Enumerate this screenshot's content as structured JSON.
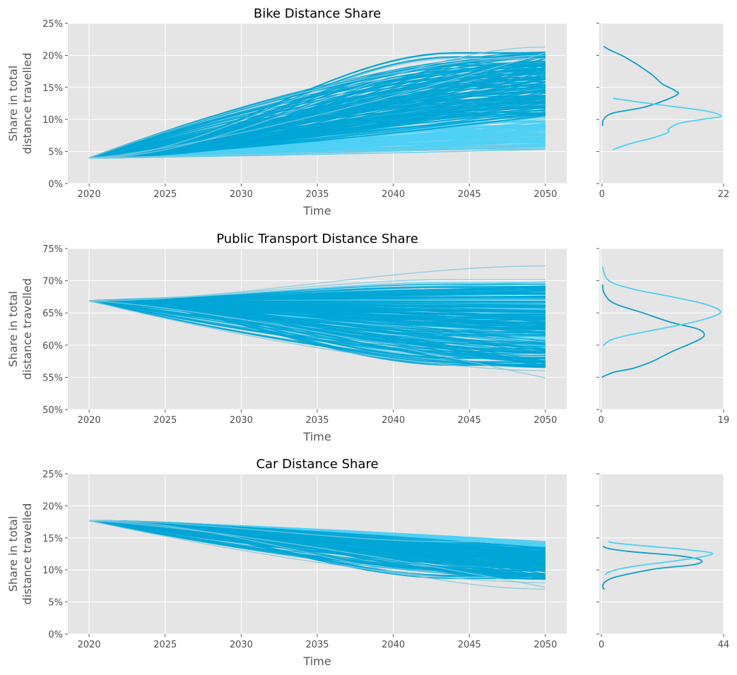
{
  "chart_data": [
    {
      "type": "line",
      "title": "Bike Distance Share",
      "xlabel": "Time",
      "ylabel_line1": "Share in total",
      "ylabel_line2": "distance travelled",
      "x_ticks": [
        2020,
        2025,
        2030,
        2035,
        2040,
        2045,
        2050
      ],
      "xlim": [
        2018.6,
        2051.4
      ],
      "ylim": [
        0,
        25
      ],
      "y_ticks": [
        0,
        5,
        10,
        15,
        20,
        25
      ],
      "y_tick_labels": [
        "0%",
        "5%",
        "10%",
        "15%",
        "20%",
        "25%"
      ],
      "start_value": 4.0,
      "start_year": 2020,
      "end_year": 2050,
      "envelope_end": {
        "light_low": 5.3,
        "light_high": 10.8,
        "dark_low": 10.5,
        "dark_high": 20.6
      },
      "outlier_end_values": [
        21.3,
        20.4,
        20.0,
        19.5,
        5.6,
        5.9
      ],
      "grid": true,
      "density": {
        "x_ticks": [
          0,
          22
        ],
        "xlim": [
          -0.5,
          22
        ],
        "series": [
          {
            "color": "#0a9fcc",
            "points": [
              [
                0.1,
                9.0
              ],
              [
                0.3,
                10.0
              ],
              [
                2.0,
                11.0
              ],
              [
                8.0,
                12.0
              ],
              [
                13.5,
                13.8
              ],
              [
                13.0,
                14.6
              ],
              [
                11.0,
                15.5
              ],
              [
                9.0,
                17.0
              ],
              [
                6.5,
                18.5
              ],
              [
                4.0,
                19.8
              ],
              [
                1.5,
                20.8
              ],
              [
                0.3,
                21.4
              ]
            ]
          },
          {
            "color": "#4dd0f4",
            "points": [
              [
                2.0,
                5.3
              ],
              [
                5.0,
                6.2
              ],
              [
                9.5,
                7.2
              ],
              [
                12.0,
                8.0
              ],
              [
                12.0,
                8.5
              ],
              [
                14.0,
                9.4
              ],
              [
                18.0,
                10.0
              ],
              [
                21.5,
                10.5
              ],
              [
                19.0,
                11.3
              ],
              [
                13.0,
                12.0
              ],
              [
                6.0,
                12.8
              ],
              [
                2.0,
                13.3
              ]
            ]
          }
        ]
      }
    },
    {
      "type": "line",
      "title": "Public Transport Distance Share",
      "xlabel": "Time",
      "ylabel_line1": "Share in total",
      "ylabel_line2": "distance travelled",
      "x_ticks": [
        2020,
        2025,
        2030,
        2035,
        2040,
        2045,
        2050
      ],
      "xlim": [
        2018.6,
        2051.4
      ],
      "ylim": [
        50,
        75
      ],
      "y_ticks": [
        50,
        55,
        60,
        65,
        70,
        75
      ],
      "y_tick_labels": [
        "50%",
        "55%",
        "60%",
        "65%",
        "70%",
        "75%"
      ],
      "start_value": 66.9,
      "start_year": 2020,
      "end_year": 2050,
      "envelope_end": {
        "light_low": 56.5,
        "light_high": 70.0,
        "dark_low": 56.5,
        "dark_high": 69.5
      },
      "outlier_end_values": [
        72.3,
        54.9,
        56.0,
        70.2
      ],
      "grid": true,
      "density": {
        "x_ticks": [
          0,
          19
        ],
        "xlim": [
          -0.3,
          19
        ],
        "series": [
          {
            "color": "#0a9fcc",
            "points": [
              [
                0.1,
                55.0
              ],
              [
                2.0,
                55.8
              ],
              [
                5.0,
                56.4
              ],
              [
                8.0,
                57.5
              ],
              [
                11.0,
                59.0
              ],
              [
                14.5,
                60.5
              ],
              [
                16.0,
                61.5
              ],
              [
                15.0,
                62.5
              ],
              [
                11.0,
                63.5
              ],
              [
                6.5,
                65.0
              ],
              [
                2.0,
                66.5
              ],
              [
                0.5,
                68.0
              ],
              [
                0.2,
                69.4
              ]
            ]
          },
          {
            "color": "#4dd0f4",
            "points": [
              [
                0.3,
                59.9
              ],
              [
                1.5,
                60.8
              ],
              [
                4.0,
                61.5
              ],
              [
                9.0,
                62.5
              ],
              [
                14.0,
                63.5
              ],
              [
                17.5,
                64.5
              ],
              [
                18.5,
                65.3
              ],
              [
                16.0,
                66.4
              ],
              [
                11.0,
                67.5
              ],
              [
                5.0,
                68.7
              ],
              [
                1.2,
                70.0
              ],
              [
                0.2,
                72.2
              ]
            ]
          }
        ]
      }
    },
    {
      "type": "line",
      "title": "Car Distance Share",
      "xlabel": "Time",
      "ylabel_line1": "Share in total",
      "ylabel_line2": "distance travelled",
      "x_ticks": [
        2020,
        2025,
        2030,
        2035,
        2040,
        2045,
        2050
      ],
      "xlim": [
        2018.6,
        2051.4
      ],
      "ylim": [
        0,
        25
      ],
      "y_ticks": [
        0,
        5,
        10,
        15,
        20,
        25
      ],
      "y_tick_labels": [
        "0%",
        "5%",
        "10%",
        "15%",
        "20%",
        "25%"
      ],
      "start_value": 17.7,
      "start_year": 2020,
      "end_year": 2050,
      "envelope_end": {
        "light_low": 12.0,
        "light_high": 14.5,
        "dark_low": 8.5,
        "dark_high": 13.5
      },
      "outlier_end_values": [
        7.0,
        7.3,
        8.0,
        14.4
      ],
      "grid": true,
      "density": {
        "x_ticks": [
          0,
          44
        ],
        "xlim": [
          -0.8,
          44
        ],
        "series": [
          {
            "color": "#0a9fcc",
            "points": [
              [
                1.0,
                6.9
              ],
              [
                0.5,
                7.5
              ],
              [
                1.5,
                8.2
              ],
              [
                6.0,
                9.0
              ],
              [
                20.0,
                10.2
              ],
              [
                33.0,
                10.8
              ],
              [
                36.0,
                11.5
              ],
              [
                28.0,
                12.2
              ],
              [
                12.0,
                12.8
              ],
              [
                3.0,
                13.3
              ],
              [
                0.5,
                13.7
              ]
            ]
          },
          {
            "color": "#4dd0f4",
            "points": [
              [
                1.5,
                9.3
              ],
              [
                3.5,
                9.8
              ],
              [
                12.0,
                10.6
              ],
              [
                28.0,
                11.5
              ],
              [
                40.0,
                12.5
              ],
              [
                30.0,
                13.2
              ],
              [
                14.0,
                13.8
              ],
              [
                5.0,
                14.2
              ],
              [
                2.5,
                14.4
              ]
            ]
          }
        ]
      }
    }
  ]
}
